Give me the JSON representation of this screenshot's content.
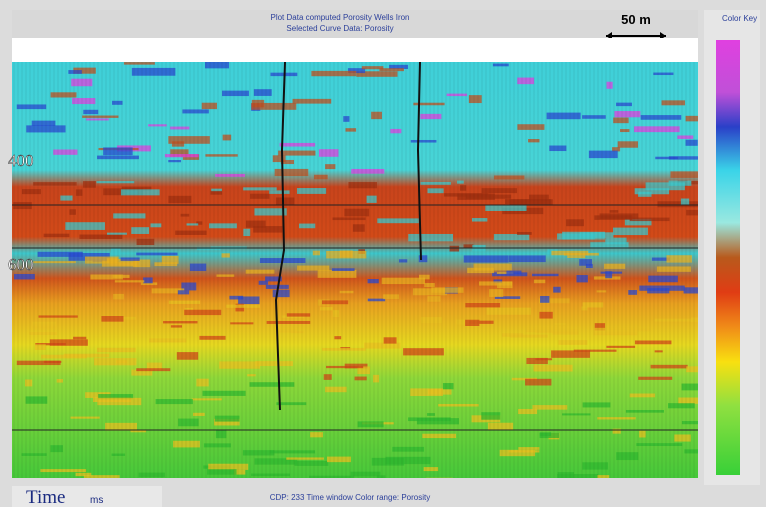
{
  "header": {
    "title_lines": [
      "Plot Data computed Porosity Wells Iron",
      "Selected Curve Data: Porosity"
    ],
    "scale_label": "50 m"
  },
  "color_key": {
    "title": "Color Key"
  },
  "axis": {
    "depth_labels": [
      "400",
      "600"
    ],
    "time_label": "Time",
    "time_unit": "ms"
  },
  "footer": {
    "text": "CDP: 233  Time window  Color range: Porosity"
  }
}
